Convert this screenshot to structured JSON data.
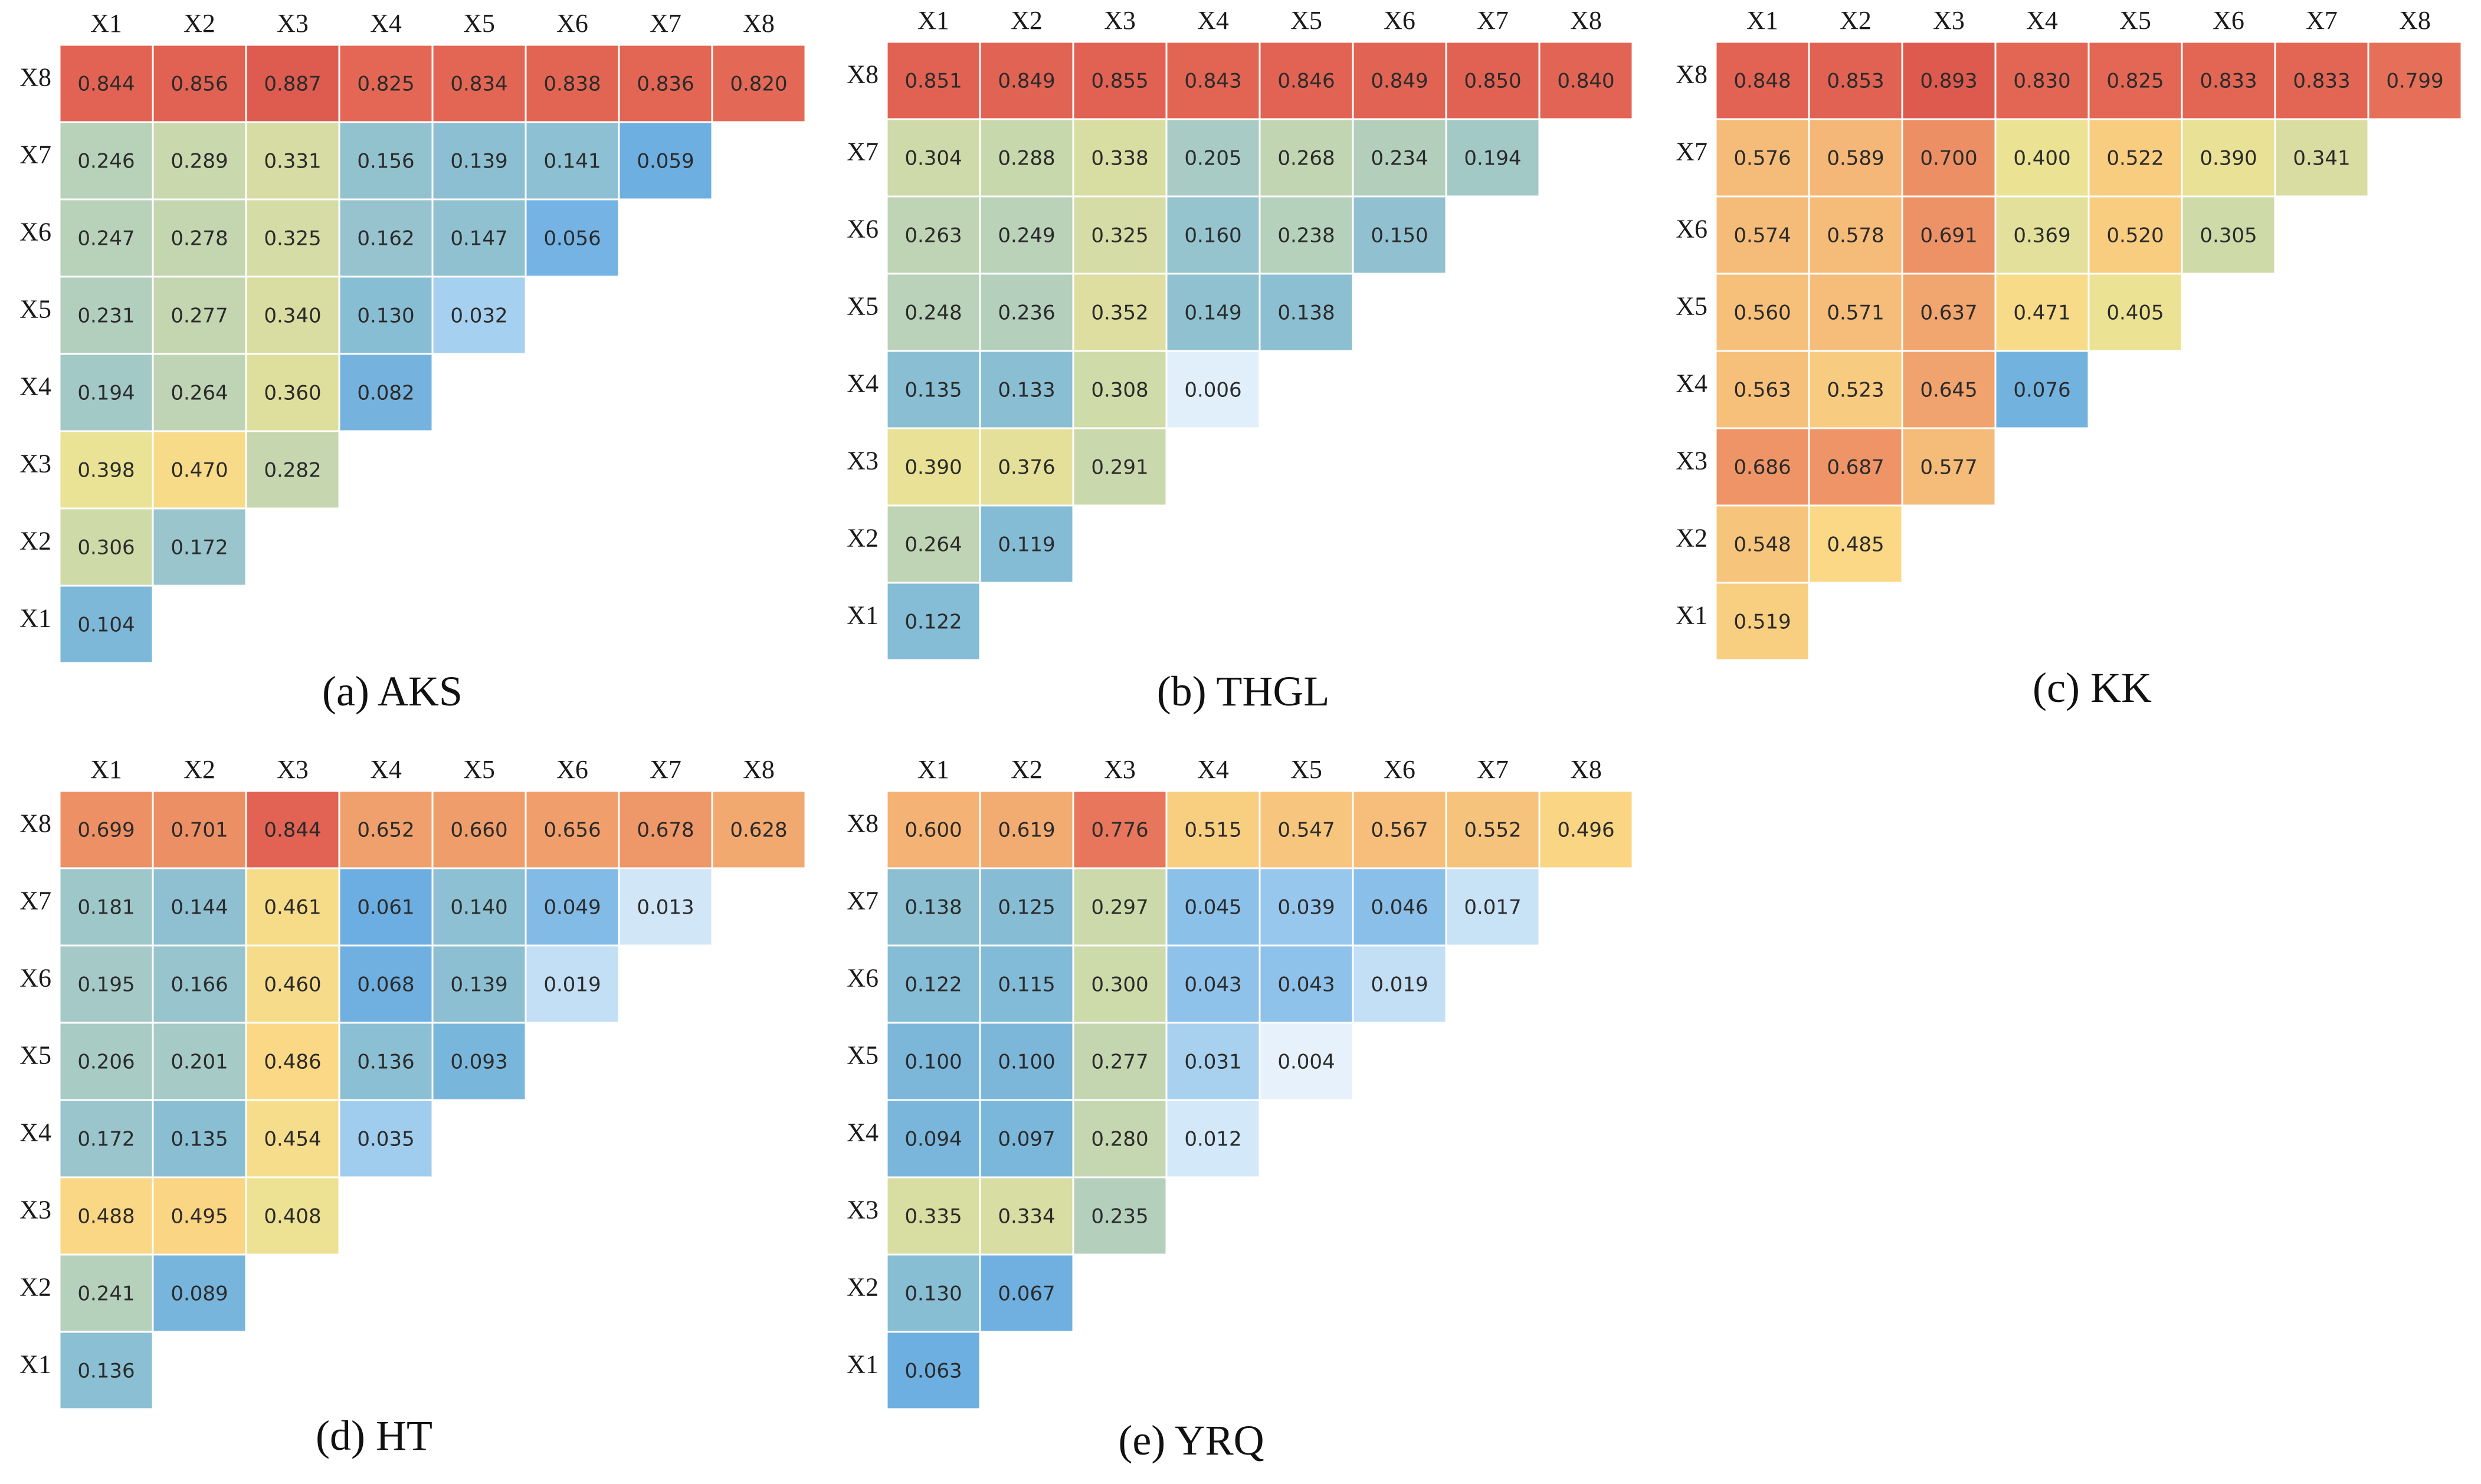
{
  "chart_data": [
    {
      "type": "heatmap",
      "title": "(a) AKS",
      "col_labels": [
        "X1",
        "X2",
        "X3",
        "X4",
        "X5",
        "X6",
        "X7",
        "X8"
      ],
      "row_labels": [
        "X8",
        "X7",
        "X6",
        "X5",
        "X4",
        "X3",
        "X2",
        "X1"
      ],
      "rows": [
        [
          0.844,
          0.856,
          0.887,
          0.825,
          0.834,
          0.838,
          0.836,
          0.82
        ],
        [
          0.246,
          0.289,
          0.331,
          0.156,
          0.139,
          0.141,
          0.059
        ],
        [
          0.247,
          0.278,
          0.325,
          0.162,
          0.147,
          0.056
        ],
        [
          0.231,
          0.277,
          0.34,
          0.13,
          0.032
        ],
        [
          0.194,
          0.264,
          0.36,
          0.082
        ],
        [
          0.398,
          0.47,
          0.282
        ],
        [
          0.306,
          0.172
        ],
        [
          0.104
        ]
      ],
      "value_labels": [
        [
          "0.844",
          "0.856",
          "0.887",
          "0.825",
          "0.834",
          "0.838",
          "0.836",
          "0.820"
        ],
        [
          "0.246",
          "0.289",
          "0.331",
          "0.156",
          "0.139",
          "0.141",
          "0.059"
        ],
        [
          "0.247",
          "0.278",
          "0.325",
          "0.162",
          "0.147",
          "0.056"
        ],
        [
          "0.231",
          "0.277",
          "0.340",
          "0.130",
          "0.032"
        ],
        [
          "0.194",
          "0.264",
          "0.360",
          "0.082"
        ],
        [
          "0.398",
          "0.470",
          "0.282"
        ],
        [
          "0.306",
          "0.172"
        ],
        [
          "0.104"
        ]
      ]
    },
    {
      "type": "heatmap",
      "title": "(b) THGL",
      "col_labels": [
        "X1",
        "X2",
        "X3",
        "X4",
        "X5",
        "X6",
        "X7",
        "X8"
      ],
      "row_labels": [
        "X8",
        "X7",
        "X6",
        "X5",
        "X4",
        "X3",
        "X2",
        "X1"
      ],
      "rows": [
        [
          0.851,
          0.849,
          0.855,
          0.843,
          0.846,
          0.849,
          0.85,
          0.84
        ],
        [
          0.304,
          0.288,
          0.338,
          0.205,
          0.268,
          0.234,
          0.194
        ],
        [
          0.263,
          0.249,
          0.325,
          0.16,
          0.238,
          0.15
        ],
        [
          0.248,
          0.236,
          0.352,
          0.149,
          0.138
        ],
        [
          0.135,
          0.133,
          0.308,
          0.006
        ],
        [
          0.39,
          0.376,
          0.291
        ],
        [
          0.264,
          0.119
        ],
        [
          0.122
        ]
      ],
      "value_labels": [
        [
          "0.851",
          "0.849",
          "0.855",
          "0.843",
          "0.846",
          "0.849",
          "0.850",
          "0.840"
        ],
        [
          "0.304",
          "0.288",
          "0.338",
          "0.205",
          "0.268",
          "0.234",
          "0.194"
        ],
        [
          "0.263",
          "0.249",
          "0.325",
          "0.160",
          "0.238",
          "0.150"
        ],
        [
          "0.248",
          "0.236",
          "0.352",
          "0.149",
          "0.138"
        ],
        [
          "0.135",
          "0.133",
          "0.308",
          "0.006"
        ],
        [
          "0.390",
          "0.376",
          "0.291"
        ],
        [
          "0.264",
          "0.119"
        ],
        [
          "0.122"
        ]
      ]
    },
    {
      "type": "heatmap",
      "title": "(c)  KK",
      "col_labels": [
        "X1",
        "X2",
        "X3",
        "X4",
        "X5",
        "X6",
        "X7",
        "X8"
      ],
      "row_labels": [
        "X8",
        "X7",
        "X6",
        "X5",
        "X4",
        "X3",
        "X2",
        "X1"
      ],
      "rows": [
        [
          0.848,
          0.853,
          0.893,
          0.83,
          0.825,
          0.833,
          0.833,
          0.799
        ],
        [
          0.576,
          0.589,
          0.7,
          0.4,
          0.522,
          0.39,
          0.341
        ],
        [
          0.574,
          0.578,
          0.691,
          0.369,
          0.52,
          0.305
        ],
        [
          0.56,
          0.571,
          0.637,
          0.471,
          0.405
        ],
        [
          0.563,
          0.523,
          0.645,
          0.076
        ],
        [
          0.686,
          0.687,
          0.577
        ],
        [
          0.548,
          0.485
        ],
        [
          0.519
        ]
      ],
      "value_labels": [
        [
          "0.848",
          "0.853",
          "0.893",
          "0.830",
          "0.825",
          "0.833",
          "0.833",
          "0.799"
        ],
        [
          "0.576",
          "0.589",
          "0.700",
          "0.400",
          "0.522",
          "0.390",
          "0.341"
        ],
        [
          "0.574",
          "0.578",
          "0.691",
          "0.369",
          "0.520",
          "0.305"
        ],
        [
          "0.560",
          "0.571",
          "0.637",
          "0.471",
          "0.405"
        ],
        [
          "0.563",
          "0.523",
          "0.645",
          "0.076"
        ],
        [
          "0.686",
          "0.687",
          "0.577"
        ],
        [
          "0.548",
          "0.485"
        ],
        [
          "0.519"
        ]
      ]
    },
    {
      "type": "heatmap",
      "title": "(d) HT",
      "col_labels": [
        "X1",
        "X2",
        "X3",
        "X4",
        "X5",
        "X6",
        "X7",
        "X8"
      ],
      "row_labels": [
        "X8",
        "X7",
        "X6",
        "X5",
        "X4",
        "X3",
        "X2",
        "X1"
      ],
      "rows": [
        [
          0.699,
          0.701,
          0.844,
          0.652,
          0.66,
          0.656,
          0.678,
          0.628
        ],
        [
          0.181,
          0.144,
          0.461,
          0.061,
          0.14,
          0.049,
          0.013
        ],
        [
          0.195,
          0.166,
          0.46,
          0.068,
          0.139,
          0.019
        ],
        [
          0.206,
          0.201,
          0.486,
          0.136,
          0.093
        ],
        [
          0.172,
          0.135,
          0.454,
          0.035
        ],
        [
          0.488,
          0.495,
          0.408
        ],
        [
          0.241,
          0.089
        ],
        [
          0.136
        ]
      ],
      "value_labels": [
        [
          "0.699",
          "0.701",
          "0.844",
          "0.652",
          "0.660",
          "0.656",
          "0.678",
          "0.628"
        ],
        [
          "0.181",
          "0.144",
          "0.461",
          "0.061",
          "0.140",
          "0.049",
          "0.013"
        ],
        [
          "0.195",
          "0.166",
          "0.460",
          "0.068",
          "0.139",
          "0.019"
        ],
        [
          "0.206",
          "0.201",
          "0.486",
          "0.136",
          "0.093"
        ],
        [
          "0.172",
          "0.135",
          "0.454",
          "0.035"
        ],
        [
          "0.488",
          "0.495",
          "0.408"
        ],
        [
          "0.241",
          "0.089"
        ],
        [
          "0.136"
        ]
      ]
    },
    {
      "type": "heatmap",
      "title": "(e) YRQ",
      "col_labels": [
        "X1",
        "X2",
        "X3",
        "X4",
        "X5",
        "X6",
        "X7",
        "X8"
      ],
      "row_labels": [
        "X8",
        "X7",
        "X6",
        "X5",
        "X4",
        "X3",
        "X2",
        "X1"
      ],
      "rows": [
        [
          0.6,
          0.619,
          0.776,
          0.515,
          0.547,
          0.567,
          0.552,
          0.496
        ],
        [
          0.138,
          0.125,
          0.297,
          0.045,
          0.039,
          0.046,
          0.017
        ],
        [
          0.122,
          0.115,
          0.3,
          0.043,
          0.043,
          0.019
        ],
        [
          0.1,
          0.1,
          0.277,
          0.031,
          0.004
        ],
        [
          0.094,
          0.097,
          0.28,
          0.012
        ],
        [
          0.335,
          0.334,
          0.235
        ],
        [
          0.13,
          0.067
        ],
        [
          0.063
        ]
      ],
      "value_labels": [
        [
          "0.600",
          "0.619",
          "0.776",
          "0.515",
          "0.547",
          "0.567",
          "0.552",
          "0.496"
        ],
        [
          "0.138",
          "0.125",
          "0.297",
          "0.045",
          "0.039",
          "0.046",
          "0.017"
        ],
        [
          "0.122",
          "0.115",
          "0.300",
          "0.043",
          "0.043",
          "0.019"
        ],
        [
          "0.100",
          "0.100",
          "0.277",
          "0.031",
          "0.004"
        ],
        [
          "0.094",
          "0.097",
          "0.280",
          "0.012"
        ],
        [
          "0.335",
          "0.334",
          "0.235"
        ],
        [
          "0.130",
          "0.067"
        ],
        [
          "0.063"
        ]
      ]
    }
  ]
}
